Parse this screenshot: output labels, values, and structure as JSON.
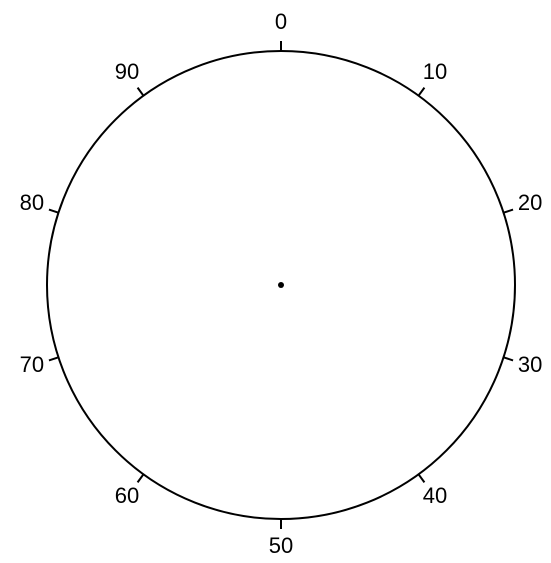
{
  "dial": {
    "ticks": [
      0,
      10,
      20,
      30,
      40,
      50,
      60,
      70,
      80,
      90
    ]
  }
}
